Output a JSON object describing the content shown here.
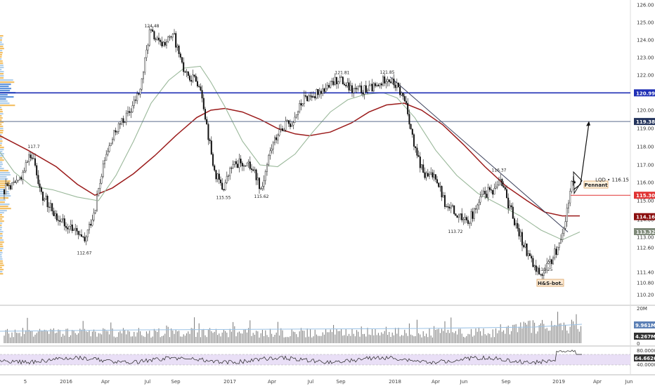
{
  "chart_data": {
    "type": "candlestick",
    "price_ticks": [
      "126.00",
      "125.00",
      "124.00",
      "123.00",
      "122.00",
      "121.00",
      "120.00",
      "119.00",
      "118.00",
      "117.00",
      "116.00",
      "115.00",
      "114.00",
      "113.00",
      "112.60",
      "111.40",
      "110.80",
      "110.20"
    ],
    "price_ylim": [
      110.2,
      126.0
    ],
    "x_ticks": [
      "5",
      "2016",
      "Apr",
      "Jul",
      "Sep",
      "2017",
      "Apr",
      "Jul",
      "Sep",
      "2018",
      "Apr",
      "Jun",
      "Sep",
      "2019",
      "Apr",
      "Jun"
    ],
    "price_tags": [
      {
        "text": "120.99",
        "value": 120.99,
        "color": "#1f2fb5"
      },
      {
        "text": "119.38",
        "value": 119.38,
        "color": "#24345c"
      },
      {
        "text": "115.30",
        "value": 115.3,
        "color": "#e03333"
      },
      {
        "text": "114.16",
        "value": 114.16,
        "color": "#8b0e0e"
      },
      {
        "text": "113.32",
        "value": 113.32,
        "color": "#7f8a7a"
      }
    ],
    "horizontal_lines": [
      {
        "value": 120.99,
        "color": "#1f2fb5"
      },
      {
        "value": 119.38,
        "color": "#5a6a8c"
      },
      {
        "value": 115.3,
        "color": "#e03333"
      }
    ],
    "price_labels": [
      {
        "text": "124.48",
        "value": 124.48
      },
      {
        "text": "121.81",
        "value": 121.81
      },
      {
        "text": "121.85",
        "value": 121.85
      },
      {
        "text": "117.7",
        "value": 117.7
      },
      {
        "text": "115.55",
        "value": 115.55
      },
      {
        "text": "115.62",
        "value": 115.62
      },
      {
        "text": "112.67",
        "value": 112.67
      },
      {
        "text": "113.72",
        "value": 113.72
      },
      {
        "text": "116.37",
        "value": 116.37
      },
      {
        "text": "111.25",
        "value": 111.25
      }
    ],
    "annotations": [
      {
        "text": "Pennant"
      },
      {
        "text": "H&S-bot."
      }
    ],
    "symbol_label": "LQD • 116.15",
    "volume_ticks": [
      "20M",
      "0"
    ],
    "volume_tags": [
      {
        "text": "9.961M",
        "color": "#5b7fb5"
      },
      {
        "text": "4.267M",
        "color": "#333333"
      }
    ],
    "rsi_ticks": [
      "80.0000",
      "40.0000"
    ],
    "rsi_tag": {
      "text": "64.6626",
      "color": "#333333"
    },
    "colors": {
      "ma_long": "#9b1b1b",
      "ma_short": "#9ab89a",
      "rsi_band": "#e9dff6",
      "rsi_line": "#222222",
      "volume": "#777777"
    }
  }
}
